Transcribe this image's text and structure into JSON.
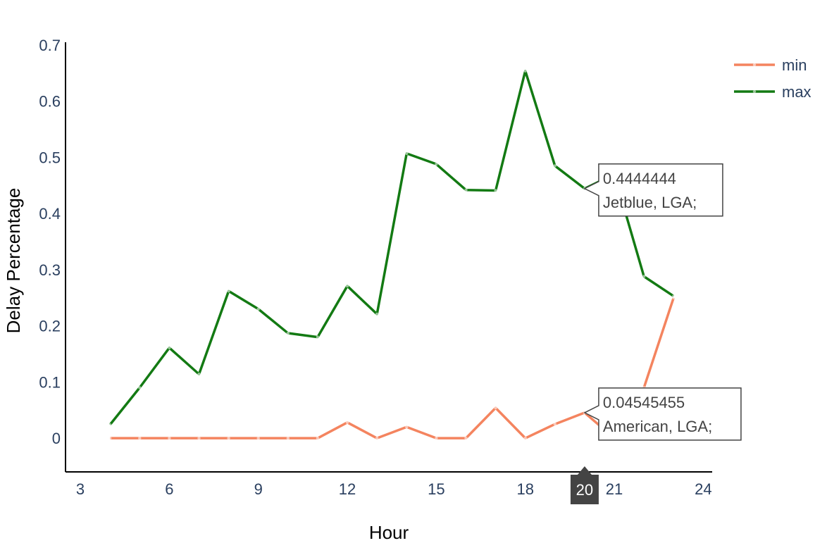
{
  "chart_data": {
    "type": "line",
    "xlabel": "Hour",
    "ylabel": "Delay Percentage",
    "xlim": [
      2.5,
      24.3
    ],
    "ylim": [
      -0.06,
      0.705
    ],
    "x_ticks": [
      3,
      6,
      9,
      12,
      15,
      18,
      21,
      24
    ],
    "y_ticks": [
      0,
      0.1,
      0.2,
      0.3,
      0.4,
      0.5,
      0.6,
      0.7
    ],
    "x_tick_labels": [
      "3",
      "6",
      "9",
      "12",
      "15",
      "18",
      "21",
      "24"
    ],
    "y_tick_labels": [
      "0",
      "0.1",
      "0.2",
      "0.3",
      "0.4",
      "0.5",
      "0.6",
      "0.7"
    ],
    "grid": false,
    "legend_position": "top-right",
    "x": [
      4,
      5,
      6,
      7,
      8,
      9,
      10,
      11,
      12,
      13,
      14,
      15,
      16,
      17,
      18,
      19,
      20,
      21,
      22,
      23
    ],
    "series": [
      {
        "name": "min",
        "color": "#f4845f",
        "values": [
          0,
          0,
          0,
          0,
          0,
          0,
          0,
          0,
          0.028,
          0,
          0.02,
          0,
          0,
          0.054,
          0,
          0.025,
          0.04545455,
          0.0,
          0.09,
          0.25
        ]
      },
      {
        "name": "max",
        "color": "#137a13",
        "values": [
          0.024,
          0.09,
          0.161,
          0.114,
          0.262,
          0.23,
          0.187,
          0.18,
          0.271,
          0.221,
          0.507,
          0.488,
          0.442,
          0.441,
          0.654,
          0.485,
          0.4444444,
          0.47,
          0.288,
          0.253
        ]
      }
    ],
    "hover": {
      "x_label": "20",
      "labels": [
        {
          "series": "max",
          "x": 20,
          "y": 0.4444444,
          "value": "0.4444444",
          "text": "Jetblue, LGA;"
        },
        {
          "series": "min",
          "x": 20,
          "y": 0.04545455,
          "value": "0.04545455",
          "text": "American, LGA;"
        }
      ]
    }
  }
}
